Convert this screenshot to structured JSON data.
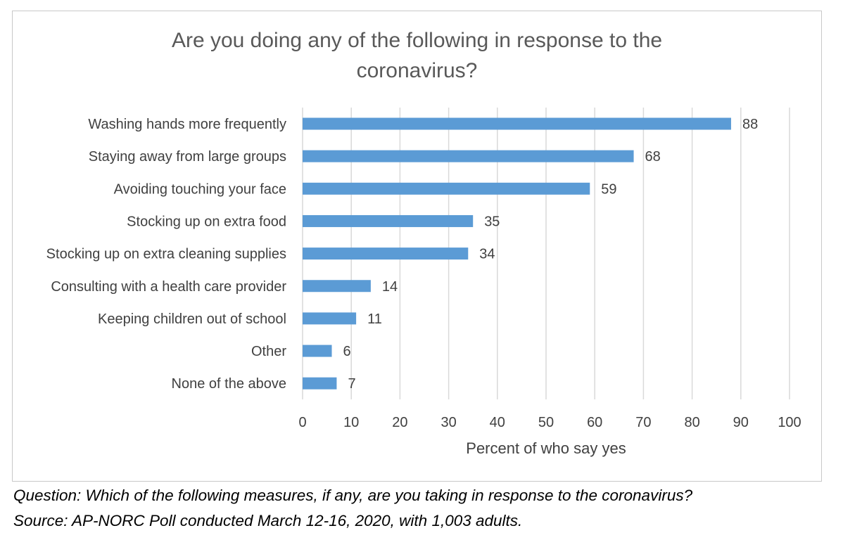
{
  "chart_data": {
    "type": "bar",
    "orientation": "horizontal",
    "title": "Are you doing any of the following in response to the coronavirus?",
    "title_lines": [
      "Are you doing any of the following in response to the",
      "coronavirus?"
    ],
    "categories": [
      "Washing hands more frequently",
      "Staying away from large groups",
      "Avoiding touching your face",
      "Stocking up on extra food",
      "Stocking up on extra cleaning supplies",
      "Consulting with a health care provider",
      "Keeping children out of school",
      "Other",
      "None of the above"
    ],
    "values": [
      88,
      68,
      59,
      35,
      34,
      14,
      11,
      6,
      7
    ],
    "xlabel": "Percent of who say yes",
    "ylabel": "",
    "xlim": [
      0,
      100
    ],
    "xticks": [
      0,
      10,
      20,
      30,
      40,
      50,
      60,
      70,
      80,
      90,
      100
    ],
    "grid": true,
    "data_labels": true,
    "legend": "none",
    "bar_color": "#5b9bd5",
    "grid_color": "#d9d9d9",
    "text_color": "#404040"
  },
  "footnote": {
    "question": "Question: Which of the following measures, if any, are you taking in response to the coronavirus?",
    "source": "Source: AP-NORC Poll conducted March 12-16, 2020, with 1,003 adults."
  }
}
